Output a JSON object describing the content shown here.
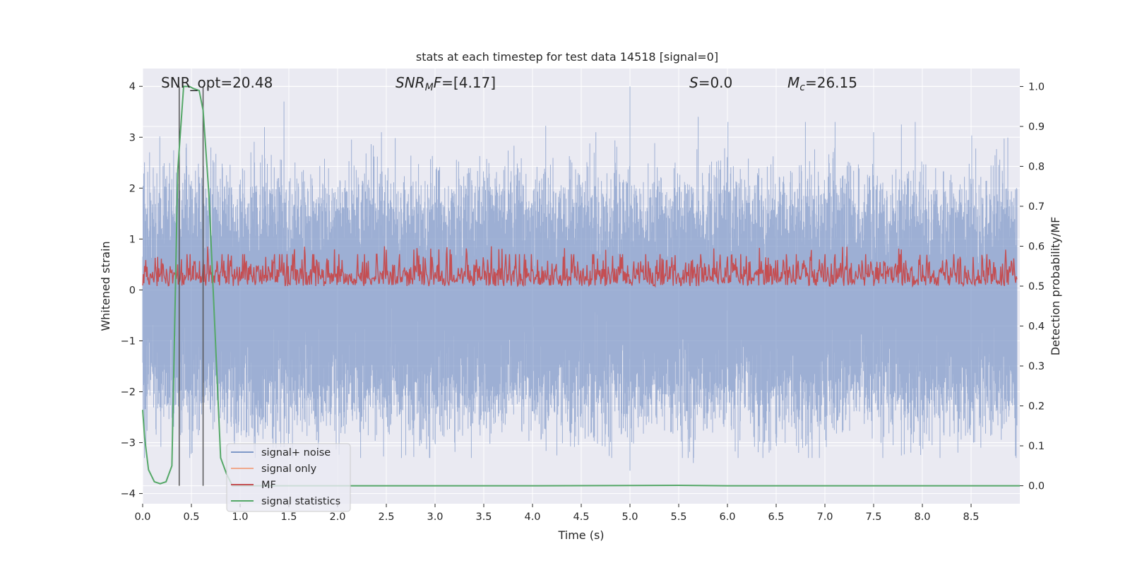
{
  "chart_data": {
    "type": "line",
    "title": "stats at each timestep for test data 14518 [signal=0]",
    "xlabel": "Time (s)",
    "ylabel": "Whitened strain",
    "y2label": "Detection probability/MF",
    "xlim": [
      0,
      9.0
    ],
    "ylim": [
      -4.2,
      4.35
    ],
    "y2lim": [
      -0.045,
      1.045
    ],
    "xticks": [
      0.0,
      0.5,
      1.0,
      1.5,
      2.0,
      2.5,
      3.0,
      3.5,
      4.0,
      4.5,
      5.0,
      5.5,
      6.0,
      6.5,
      7.0,
      7.5,
      8.0,
      8.5
    ],
    "xtick_labels": [
      "0.0",
      "0.5",
      "1.0",
      "1.5",
      "2.0",
      "2.5",
      "3.0",
      "3.5",
      "4.0",
      "4.5",
      "5.0",
      "5.5",
      "6.0",
      "6.5",
      "7.0",
      "7.5",
      "8.0",
      "8.5"
    ],
    "yticks": [
      4,
      3,
      2,
      1,
      0,
      -1,
      -2,
      -3,
      -4
    ],
    "ytick_labels": [
      "4",
      "3",
      "2",
      "1",
      "0",
      "−1",
      "−2",
      "−3",
      "−4"
    ],
    "y2ticks": [
      1.0,
      0.9,
      0.8,
      0.7,
      0.6,
      0.5,
      0.4,
      0.3,
      0.2,
      0.1,
      0.0
    ],
    "y2tick_labels": [
      "1.0",
      "0.9",
      "0.8",
      "0.7",
      "0.6",
      "0.5",
      "0.4",
      "0.3",
      "0.2",
      "0.1",
      "0.0"
    ],
    "grid": true,
    "legend_position": "lower-left",
    "annotations": {
      "snr_opt": "SNR_opt=20.48",
      "snr_mf_var": "SNR",
      "snr_mf_sub": "M",
      "snr_mf_var2": "F",
      "snr_mf_val": "=[4.17]",
      "s_var": "S",
      "s_val": "=0.0",
      "mc_var": "M",
      "mc_sub": "c",
      "mc_val": "=26.15"
    },
    "vertical_markers_x": [
      0.375,
      0.62
    ],
    "noise_envelope": {
      "description_free": true,
      "upper_typical": [
        1.0,
        2.0
      ],
      "lower_typical": [
        -1.5,
        -2.5
      ],
      "peaks": [
        {
          "x": 1.45,
          "y": 3.7
        },
        {
          "x": 5.0,
          "y": 4.0
        },
        {
          "x": 5.7,
          "y": 3.4
        },
        {
          "x": 1.25,
          "y": 3.2
        },
        {
          "x": 2.45,
          "y": 3.1
        },
        {
          "x": 4.65,
          "y": 3.1
        },
        {
          "x": 6.8,
          "y": 3.3
        },
        {
          "x": 7.5,
          "y": 3.1
        },
        {
          "x": 0.7,
          "y": 2.8
        },
        {
          "x": 5.0,
          "y": -3.55
        },
        {
          "x": 5.65,
          "y": -3.4
        },
        {
          "x": 3.0,
          "y": -3.0
        },
        {
          "x": 3.2,
          "y": -3.0
        },
        {
          "x": 4.25,
          "y": -3.25
        },
        {
          "x": 7.7,
          "y": -3.05
        },
        {
          "x": 8.1,
          "y": -3.05
        },
        {
          "x": 8.6,
          "y": -3.1
        },
        {
          "x": 2.4,
          "y": -2.85
        }
      ]
    },
    "series": [
      {
        "name": "signal+ noise",
        "color": "#7f99c8",
        "axis": "left"
      },
      {
        "name": "signal only",
        "color": "#f0a88c",
        "axis": "left"
      },
      {
        "name": "MF",
        "color": "#c44e52",
        "axis": "right",
        "baseline": 0.5,
        "typical_max": 0.58,
        "peak_max": 0.6
      },
      {
        "name": "signal statistics",
        "color": "#55a868",
        "axis": "right",
        "x": [
          0.0,
          0.02,
          0.06,
          0.12,
          0.18,
          0.24,
          0.3,
          0.36,
          0.42,
          0.48,
          0.52,
          0.58,
          0.62,
          0.68,
          0.74,
          0.8,
          0.86,
          0.92,
          1.0,
          2.0,
          4.0,
          5.5,
          6.0,
          8.0,
          9.0
        ],
        "y": [
          0.19,
          0.12,
          0.04,
          0.01,
          0.005,
          0.01,
          0.05,
          0.79,
          1.0,
          1.0,
          0.995,
          0.99,
          0.94,
          0.73,
          0.4,
          0.07,
          0.03,
          0.0,
          0.0,
          0.0,
          0.0,
          0.001,
          0.0,
          0.0,
          0.0
        ]
      }
    ]
  }
}
